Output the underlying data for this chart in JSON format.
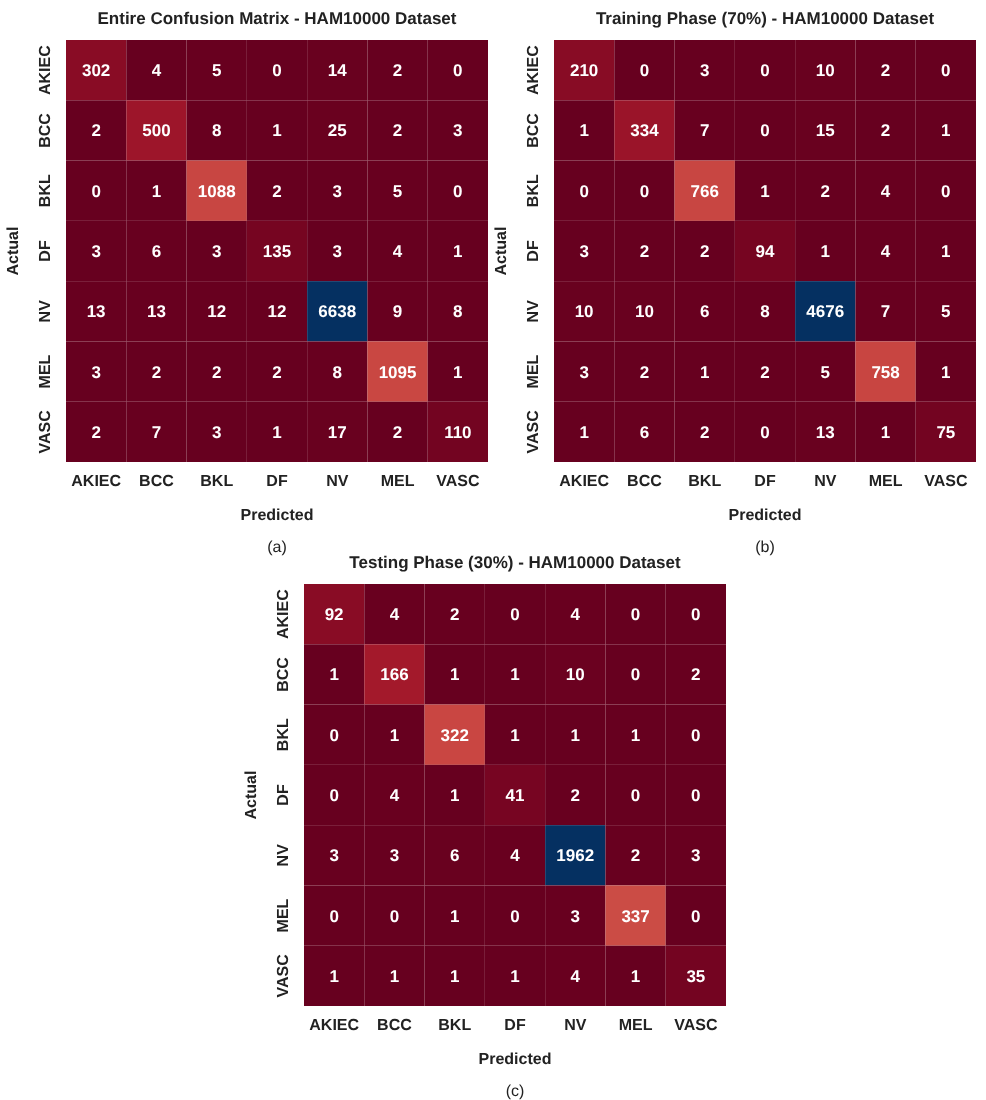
{
  "chart_data": [
    {
      "type": "heatmap",
      "title": "Entire Confusion Matrix - HAM10000 Dataset",
      "xlabel": "Predicted",
      "ylabel": "Actual",
      "annotations": [
        "(a)"
      ],
      "data_labels": true,
      "categories": [
        "AKIEC",
        "BCC",
        "BKL",
        "DF",
        "NV",
        "MEL",
        "VASC"
      ],
      "y_categories": [
        "AKIEC",
        "BCC",
        "BKL",
        "DF",
        "NV",
        "MEL",
        "VASC"
      ],
      "cells": [
        [
          302,
          4,
          5,
          0,
          14,
          2,
          0
        ],
        [
          2,
          500,
          8,
          1,
          25,
          2,
          3
        ],
        [
          0,
          1,
          1088,
          2,
          3,
          5,
          0
        ],
        [
          3,
          6,
          3,
          135,
          3,
          4,
          1
        ],
        [
          13,
          13,
          12,
          12,
          6638,
          9,
          8
        ],
        [
          3,
          2,
          2,
          2,
          8,
          1095,
          1
        ],
        [
          2,
          7,
          3,
          1,
          17,
          2,
          110
        ]
      ]
    },
    {
      "type": "heatmap",
      "title": "Training Phase (70%) - HAM10000 Dataset",
      "xlabel": "Predicted",
      "ylabel": "Actual",
      "annotations": [
        "(b)"
      ],
      "data_labels": true,
      "categories": [
        "AKIEC",
        "BCC",
        "BKL",
        "DF",
        "NV",
        "MEL",
        "VASC"
      ],
      "y_categories": [
        "AKIEC",
        "BCC",
        "BKL",
        "DF",
        "NV",
        "MEL",
        "VASC"
      ],
      "cells": [
        [
          210,
          0,
          3,
          0,
          10,
          2,
          0
        ],
        [
          1,
          334,
          7,
          0,
          15,
          2,
          1
        ],
        [
          0,
          0,
          766,
          1,
          2,
          4,
          0
        ],
        [
          3,
          2,
          2,
          94,
          1,
          4,
          1
        ],
        [
          10,
          10,
          6,
          8,
          4676,
          7,
          5
        ],
        [
          3,
          2,
          1,
          2,
          5,
          758,
          1
        ],
        [
          1,
          6,
          2,
          0,
          13,
          1,
          75
        ]
      ]
    },
    {
      "type": "heatmap",
      "title": "Testing Phase (30%) - HAM10000 Dataset",
      "xlabel": "Predicted",
      "ylabel": "Actual",
      "annotations": [
        "(c)"
      ],
      "data_labels": true,
      "categories": [
        "AKIEC",
        "BCC",
        "BKL",
        "DF",
        "NV",
        "MEL",
        "VASC"
      ],
      "y_categories": [
        "AKIEC",
        "BCC",
        "BKL",
        "DF",
        "NV",
        "MEL",
        "VASC"
      ],
      "cells": [
        [
          92,
          4,
          2,
          0,
          4,
          0,
          0
        ],
        [
          1,
          166,
          1,
          1,
          10,
          0,
          2
        ],
        [
          0,
          1,
          322,
          1,
          1,
          1,
          0
        ],
        [
          0,
          4,
          1,
          41,
          2,
          0,
          0
        ],
        [
          3,
          3,
          6,
          4,
          1962,
          2,
          3
        ],
        [
          0,
          0,
          1,
          0,
          3,
          337,
          0
        ],
        [
          1,
          1,
          1,
          1,
          4,
          1,
          35
        ]
      ]
    }
  ]
}
